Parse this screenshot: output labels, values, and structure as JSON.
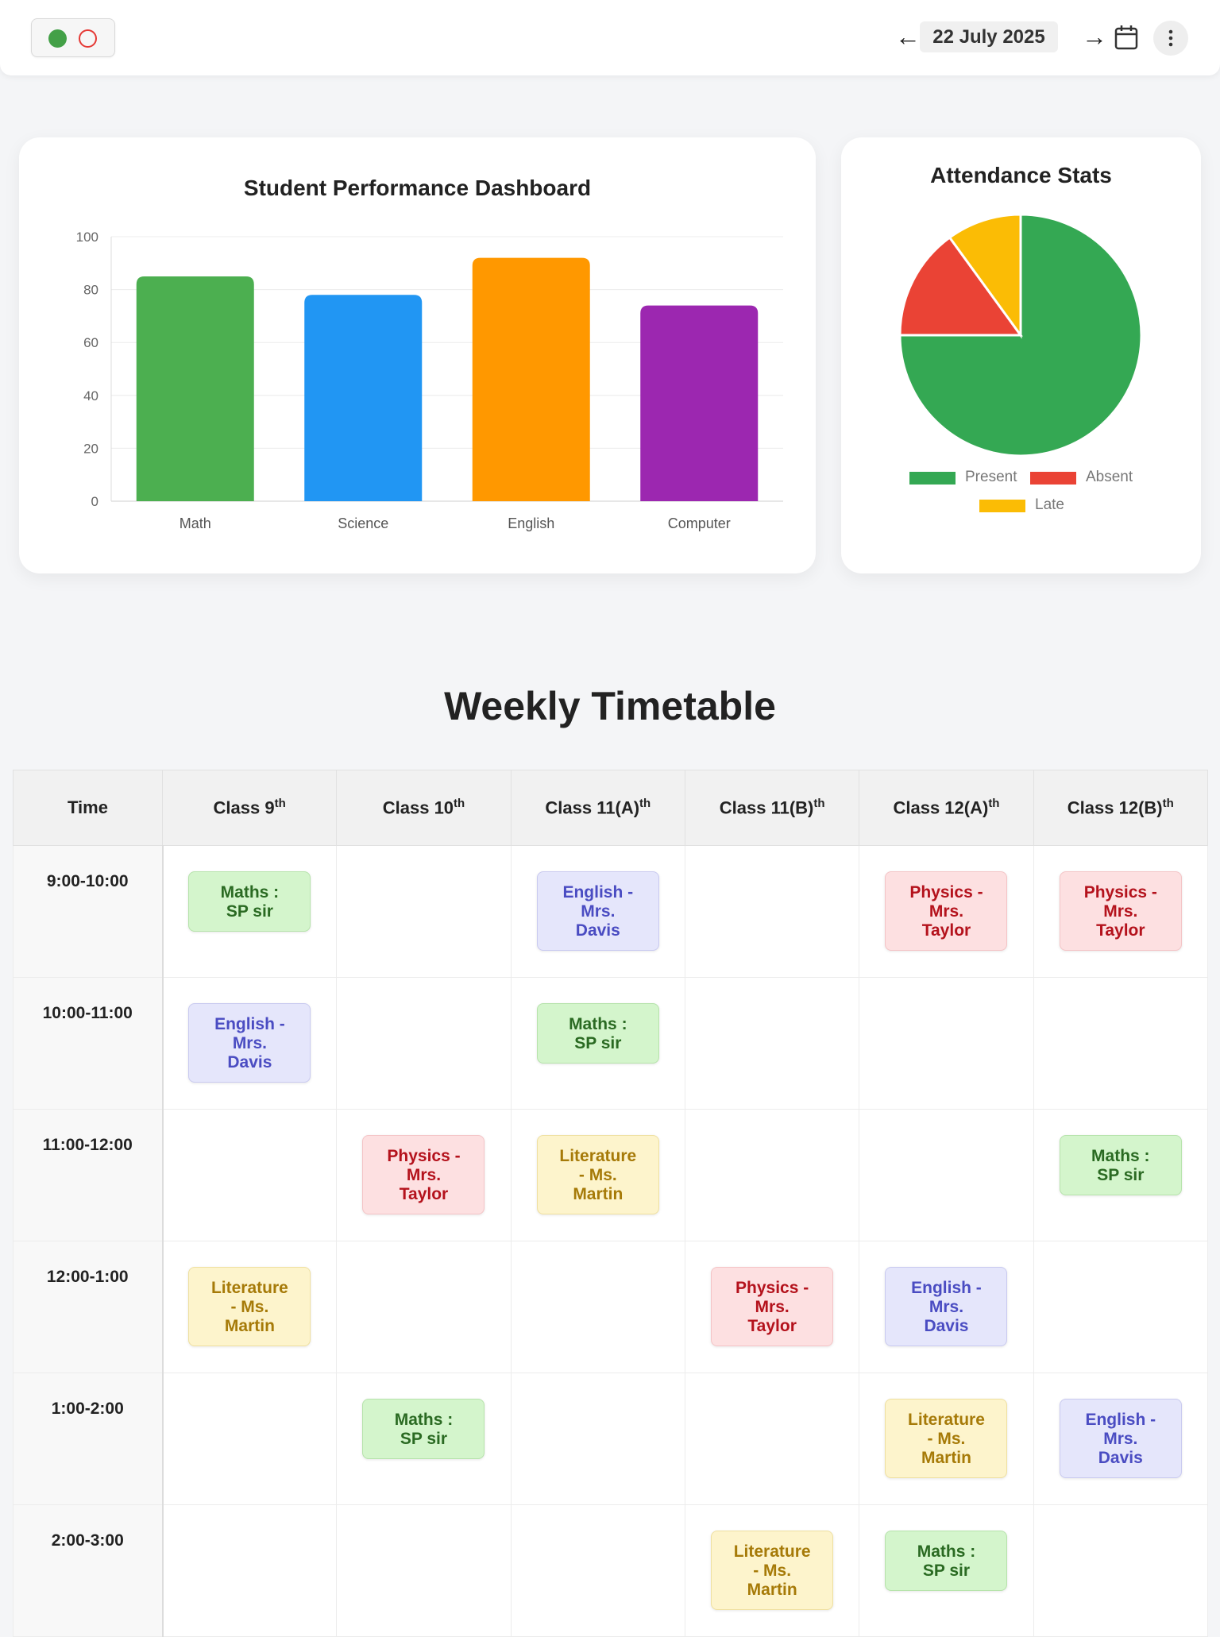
{
  "header": {
    "date": "22 July 2025",
    "prev_arrow": "←",
    "next_arrow": "→",
    "icons": [
      "status-dot-green",
      "status-dot-red",
      "calendar-icon",
      "more-vertical-icon"
    ]
  },
  "performance": {
    "title": "Student Performance Dashboard"
  },
  "attendance": {
    "title": "Attendance Stats"
  },
  "chart_data": [
    {
      "type": "bar",
      "title": "Student Performance Dashboard",
      "categories": [
        "Math",
        "Science",
        "English",
        "Computer"
      ],
      "values": [
        85,
        78,
        92,
        74
      ],
      "colors": [
        "#4caf50",
        "#2196f3",
        "#ff9800",
        "#9c27b0"
      ],
      "ylim": [
        0,
        100
      ],
      "yticks": [
        0,
        20,
        40,
        60,
        80,
        100
      ],
      "grid": true,
      "legend": "none"
    },
    {
      "type": "pie",
      "title": "Attendance Stats",
      "categories": [
        "Present",
        "Absent",
        "Late"
      ],
      "values": [
        75,
        15,
        10
      ],
      "colors": [
        "#34a853",
        "#ea4335",
        "#fbbc05"
      ],
      "legend": "bottom"
    }
  ],
  "timetable": {
    "title": "Weekly Timetable",
    "time_header": "Time",
    "classes": [
      {
        "name": "Class 9",
        "sup": "th"
      },
      {
        "name": "Class 10",
        "sup": "th"
      },
      {
        "name": "Class 11(A)",
        "sup": "th"
      },
      {
        "name": "Class 11(B)",
        "sup": "th"
      },
      {
        "name": "Class 12(A)",
        "sup": "th"
      },
      {
        "name": "Class 12(B)",
        "sup": "th"
      }
    ],
    "rows": [
      {
        "time": "9:00-10:00",
        "slots": [
          {
            "subject": "maths",
            "lines": [
              "Maths :",
              "SP sir"
            ]
          },
          null,
          {
            "subject": "english",
            "lines": [
              "English -",
              "Mrs.",
              "Davis"
            ]
          },
          null,
          {
            "subject": "physics",
            "lines": [
              "Physics -",
              "Mrs.",
              "Taylor"
            ]
          },
          {
            "subject": "physics",
            "lines": [
              "Physics -",
              "Mrs.",
              "Taylor"
            ]
          }
        ]
      },
      {
        "time": "10:00-11:00",
        "slots": [
          {
            "subject": "english",
            "lines": [
              "English -",
              "Mrs.",
              "Davis"
            ]
          },
          null,
          {
            "subject": "maths",
            "lines": [
              "Maths :",
              "SP sir"
            ]
          },
          null,
          null,
          null
        ]
      },
      {
        "time": "11:00-12:00",
        "slots": [
          null,
          {
            "subject": "physics",
            "lines": [
              "Physics -",
              "Mrs.",
              "Taylor"
            ]
          },
          {
            "subject": "literature",
            "lines": [
              "Literature",
              "- Ms.",
              "Martin"
            ]
          },
          null,
          null,
          {
            "subject": "maths",
            "lines": [
              "Maths :",
              "SP sir"
            ]
          }
        ]
      },
      {
        "time": "12:00-1:00",
        "slots": [
          {
            "subject": "literature",
            "lines": [
              "Literature",
              "- Ms.",
              "Martin"
            ]
          },
          null,
          null,
          {
            "subject": "physics",
            "lines": [
              "Physics -",
              "Mrs.",
              "Taylor"
            ]
          },
          {
            "subject": "english",
            "lines": [
              "English -",
              "Mrs.",
              "Davis"
            ]
          },
          null
        ]
      },
      {
        "time": "1:00-2:00",
        "slots": [
          null,
          {
            "subject": "maths",
            "lines": [
              "Maths :",
              "SP sir"
            ]
          },
          null,
          null,
          {
            "subject": "literature",
            "lines": [
              "Literature",
              "- Ms.",
              "Martin"
            ]
          },
          {
            "subject": "english",
            "lines": [
              "English -",
              "Mrs.",
              "Davis"
            ]
          }
        ]
      },
      {
        "time": "2:00-3:00",
        "slots": [
          null,
          null,
          null,
          {
            "subject": "literature",
            "lines": [
              "Literature",
              "- Ms.",
              "Martin"
            ]
          },
          {
            "subject": "maths",
            "lines": [
              "Maths :",
              "SP sir"
            ]
          },
          null
        ]
      }
    ]
  }
}
